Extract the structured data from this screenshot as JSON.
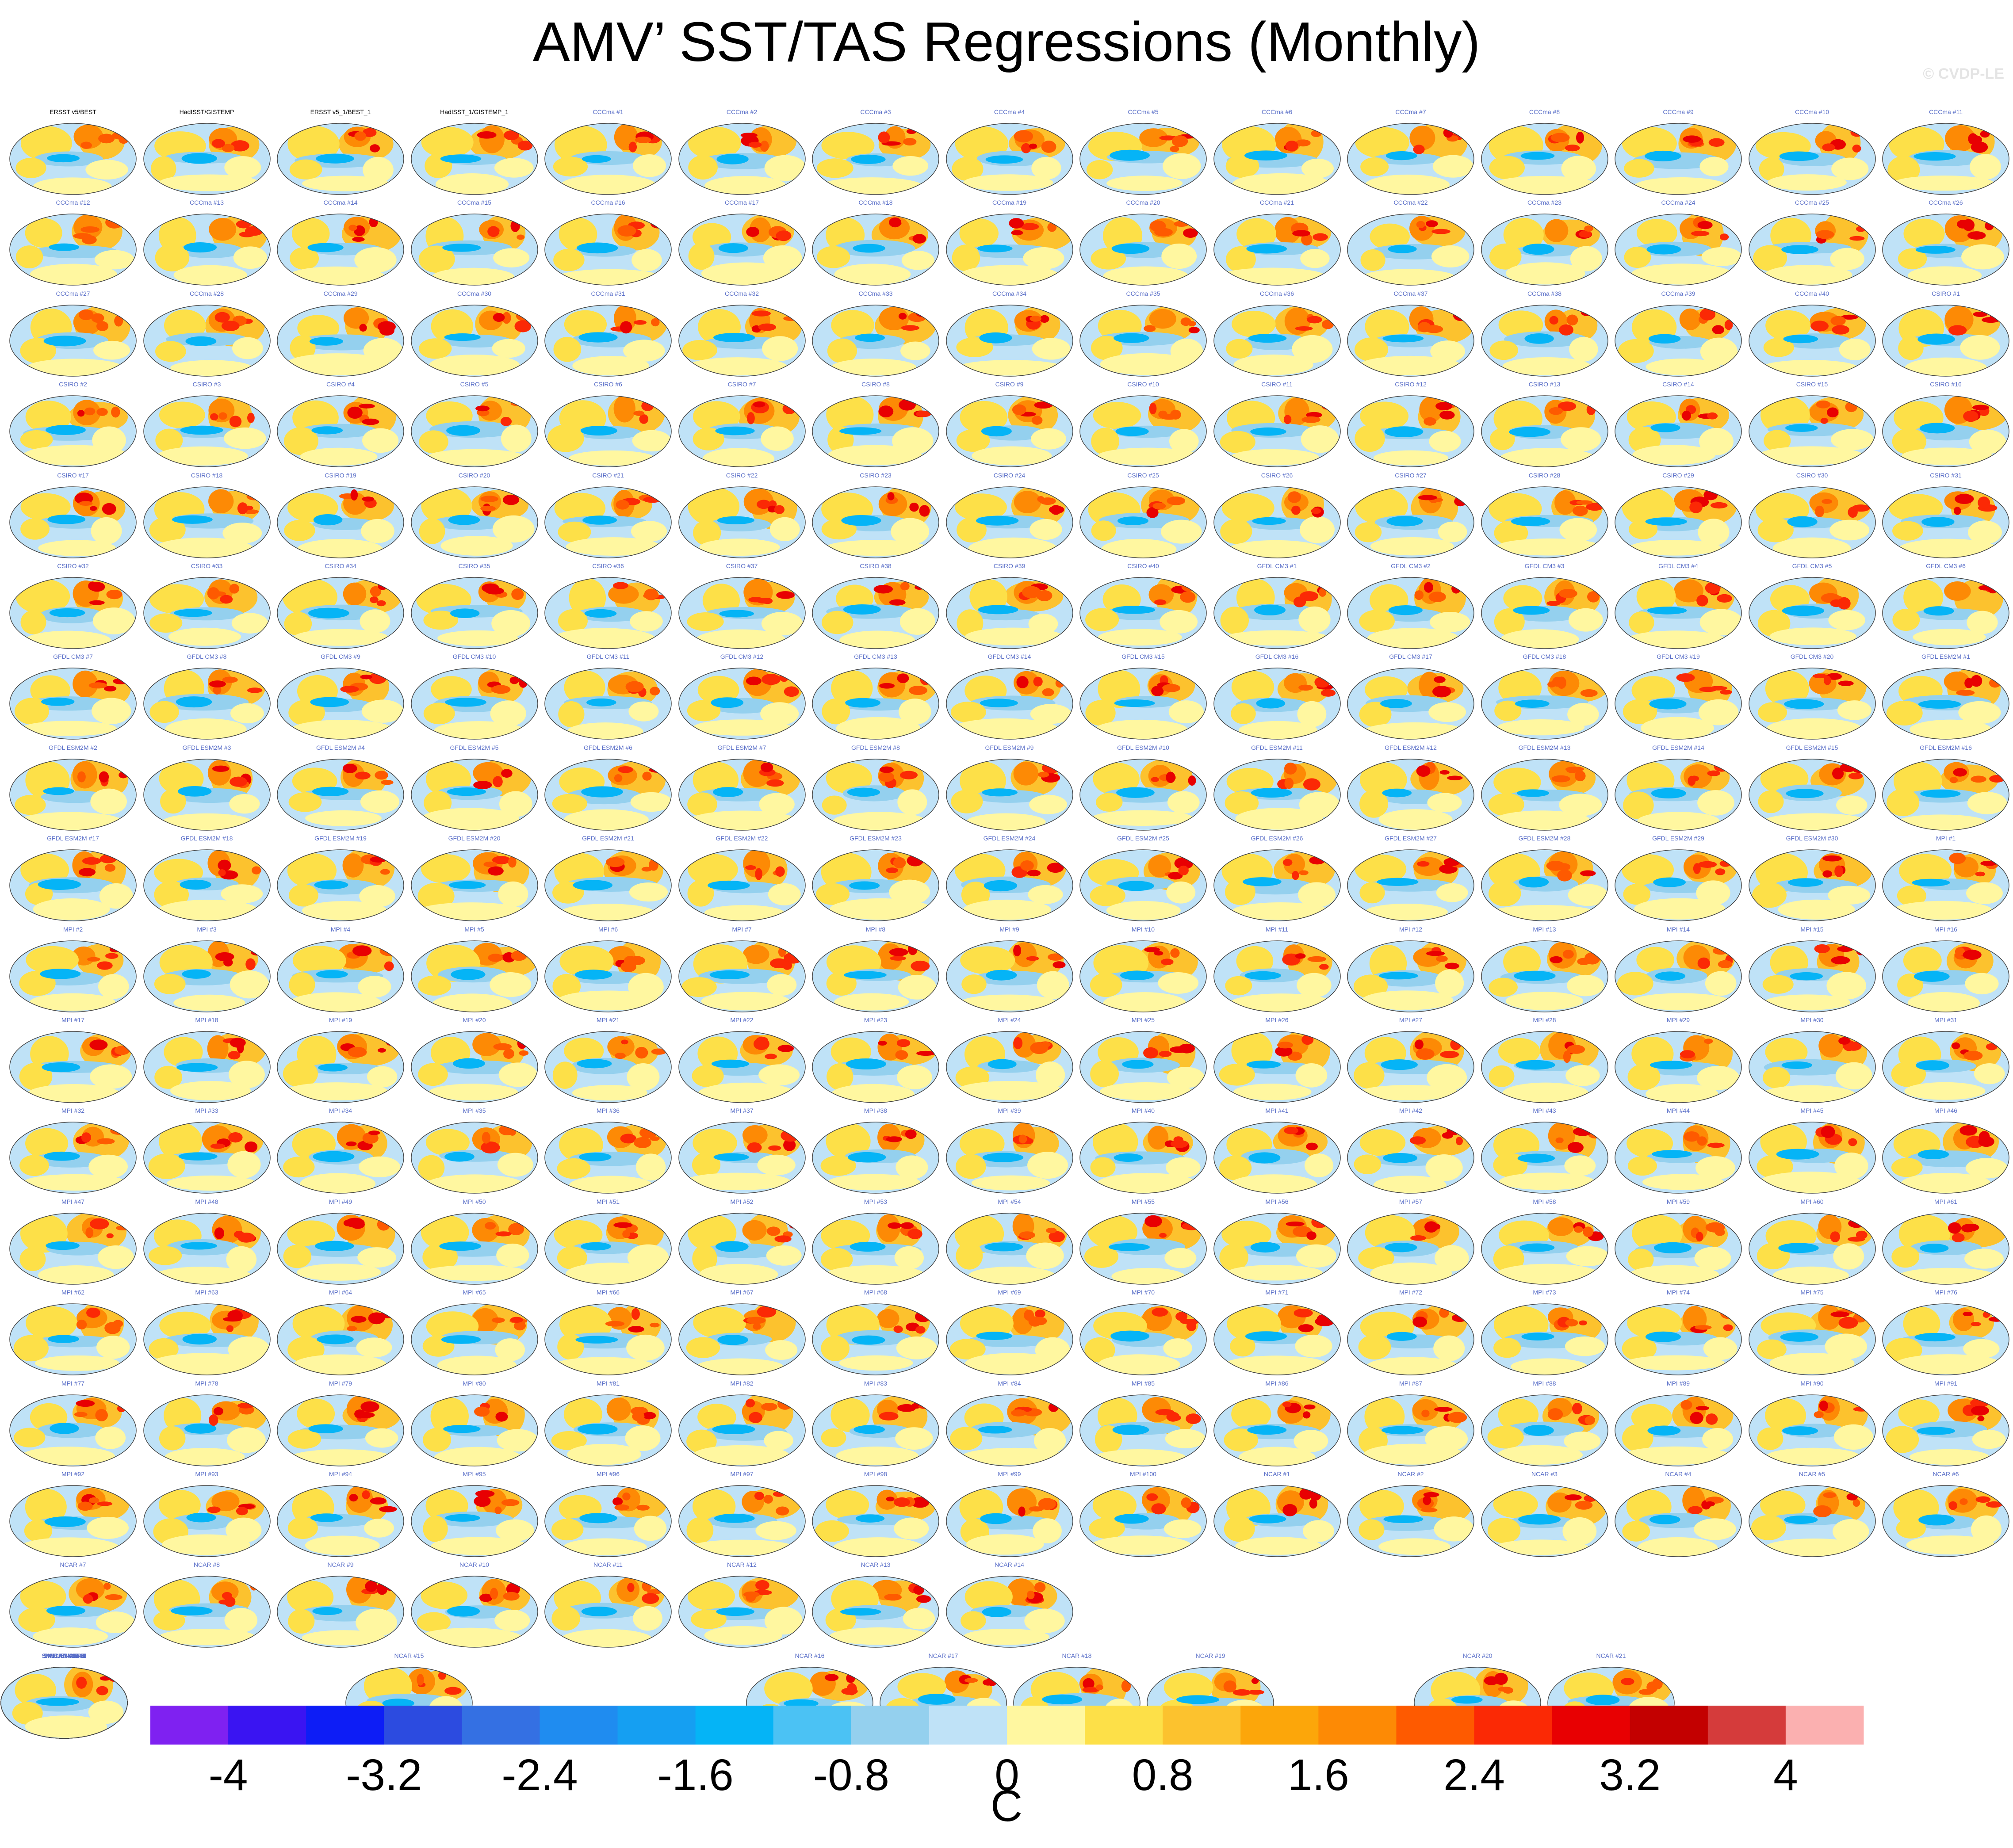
{
  "title": "AMV’ SST/TAS Regressions (Monthly)",
  "watermark": "© CVDP-LE",
  "colorbar": {
    "units": "C",
    "tick_labels": [
      "-4",
      "-3.2",
      "-2.4",
      "-1.6",
      "-0.8",
      "0",
      "0.8",
      "1.6",
      "2.4",
      "3.2",
      "4"
    ],
    "levels": [
      -4.4,
      -4.0,
      -3.6,
      -3.2,
      -2.8,
      -2.4,
      -2.0,
      -1.6,
      -1.2,
      -0.8,
      -0.4,
      0,
      0.4,
      0.8,
      1.2,
      1.6,
      2.0,
      2.4,
      2.8,
      3.2,
      3.6,
      4.0,
      4.4
    ],
    "colors": [
      "#7f21f1",
      "#3a14f2",
      "#0d1df6",
      "#2c4be0",
      "#3470e3",
      "#1f8cf0",
      "#159ff2",
      "#05b4f6",
      "#4bc2f4",
      "#94d0ee",
      "#bfe2f7",
      "#fff7a0",
      "#fde048",
      "#fcc22e",
      "#fca60a",
      "#fd8a05",
      "#fe5a00",
      "#fb2905",
      "#e80002",
      "#c30000",
      "#d53b3b",
      "#fbb0b0"
    ]
  },
  "chart_data": {
    "type": "heatmap",
    "title": "AMV’ SST/TAS Regressions (Monthly)",
    "colorbar_units": "C",
    "colorbar_range": [
      -4.4,
      4.4
    ],
    "panel_count": 255,
    "observations": [
      "ERSST v5/BEST",
      "HadISST/GISTEMP",
      "ERSST v5_1/BEST_1",
      "HadISST_1/GISTEMP_1"
    ],
    "ensembles": [
      {
        "name": "CCCma",
        "members": 40
      },
      {
        "name": "CSIRO",
        "members": 40
      },
      {
        "name": "GFDL CM3",
        "members": 20
      },
      {
        "name": "GFDL ESM2M",
        "members": 30
      },
      {
        "name": "MPI",
        "members": 100
      },
      {
        "name": "NCAR",
        "members": 40
      },
      {
        "name": "SMHI_KNMI",
        "members": 16
      }
    ]
  }
}
